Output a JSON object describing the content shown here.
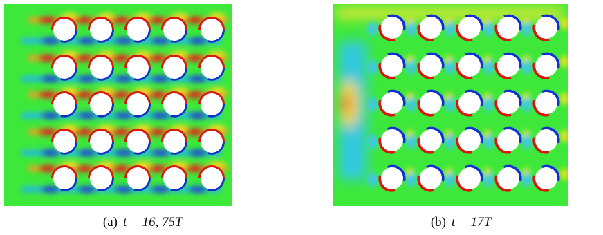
{
  "panels": [
    {
      "label": "(a)",
      "formula": "t = 16, 75T"
    },
    {
      "label": "(b)",
      "formula": "t = 17T"
    }
  ]
}
